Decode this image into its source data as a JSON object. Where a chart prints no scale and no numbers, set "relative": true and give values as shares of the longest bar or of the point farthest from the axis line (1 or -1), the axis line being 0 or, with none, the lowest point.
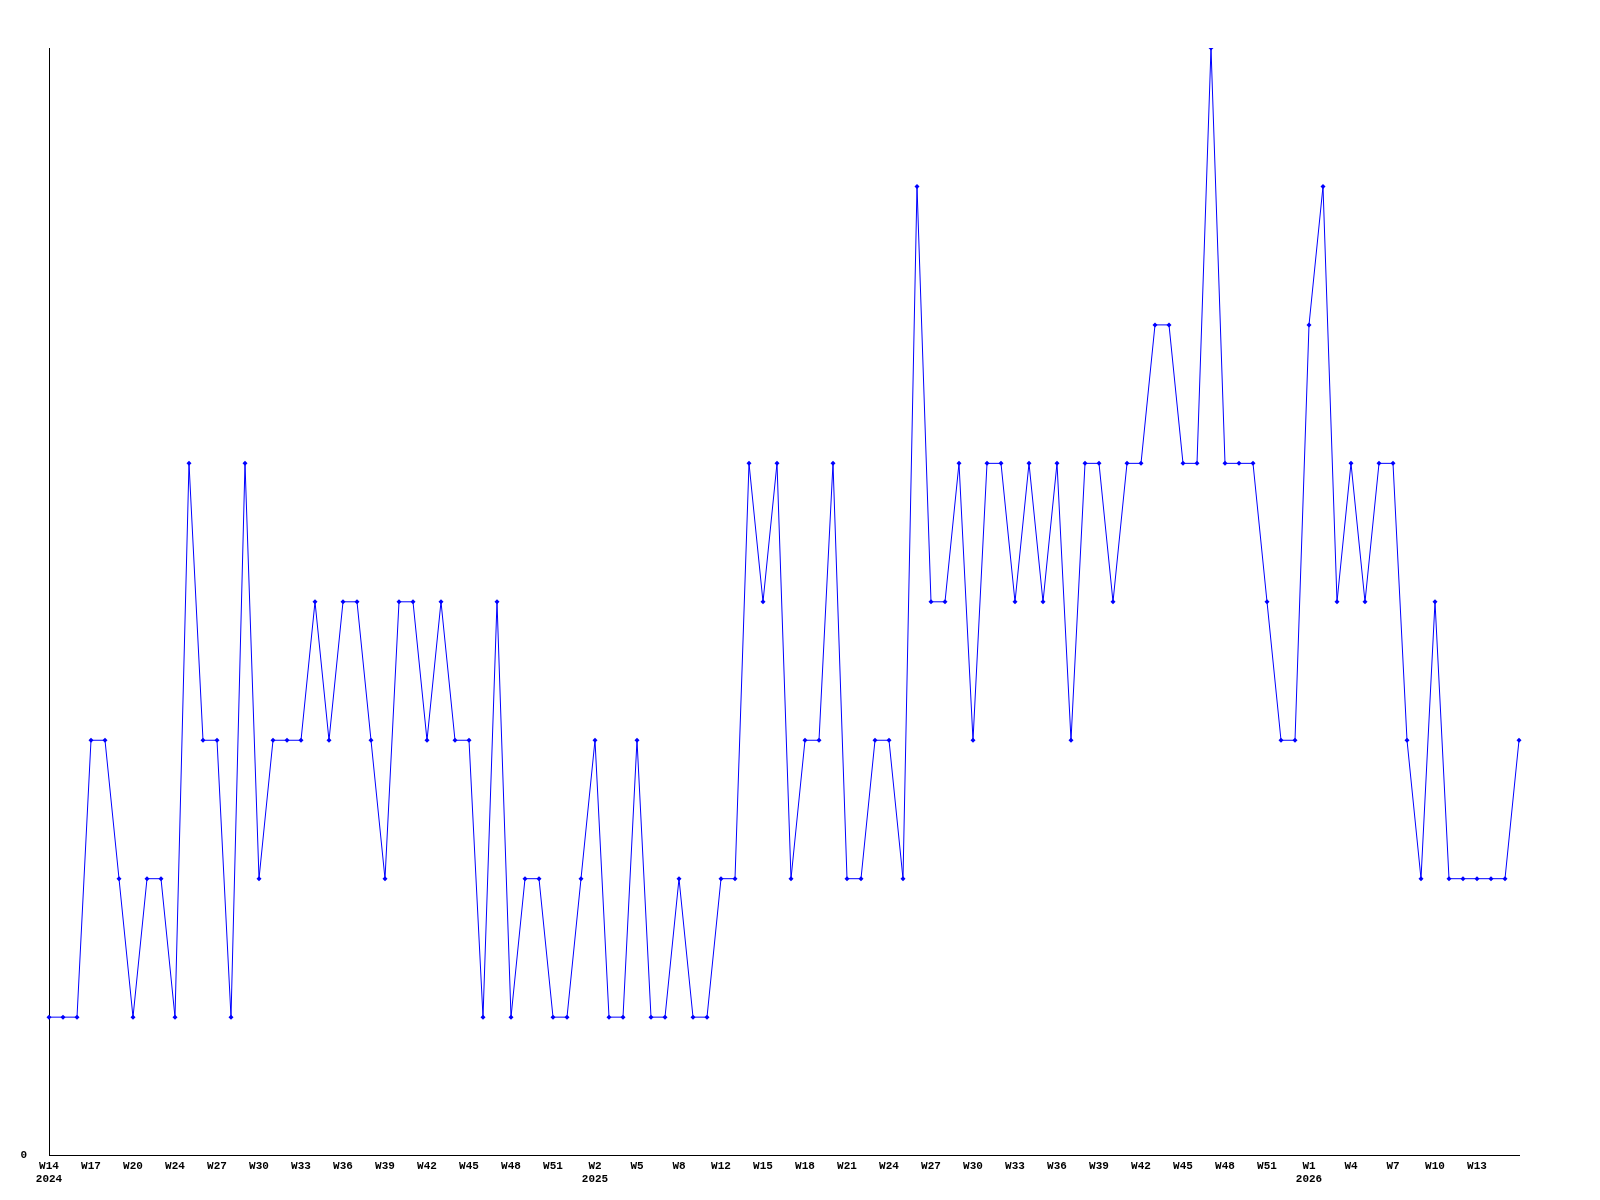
{
  "chart_data": {
    "type": "line",
    "relative": true,
    "color": "#0000ff",
    "marker": "diamond",
    "grid": false,
    "legend": false,
    "annotations": [
      "0"
    ],
    "categories": [
      "W14\n2024",
      null,
      null,
      "W17",
      null,
      null,
      "W20",
      null,
      null,
      "W24",
      null,
      null,
      "W27",
      null,
      null,
      "W30",
      null,
      null,
      "W33",
      null,
      null,
      "W36",
      null,
      null,
      "W39",
      null,
      null,
      "W42",
      null,
      null,
      "W45",
      null,
      null,
      "W48",
      null,
      null,
      "W51",
      null,
      null,
      "W2\n2025",
      null,
      null,
      "W5",
      null,
      null,
      "W8",
      null,
      null,
      "W12",
      null,
      null,
      "W15",
      null,
      null,
      "W18",
      null,
      null,
      "W21",
      null,
      null,
      "W24",
      null,
      null,
      "W27",
      null,
      null,
      "W30",
      null,
      null,
      "W33",
      null,
      null,
      "W36",
      null,
      null,
      "W39",
      null,
      null,
      "W42",
      null,
      null,
      "W45",
      null,
      null,
      "W48",
      null,
      null,
      "W51",
      null,
      null,
      "W1\n2026",
      null,
      null,
      "W4",
      null,
      null,
      "W7",
      null,
      null,
      "W10",
      null,
      null,
      "W13",
      null,
      null,
      null
    ],
    "values": [
      0.125,
      0.125,
      0.125,
      0.375,
      0.375,
      0.25,
      0.125,
      0.25,
      0.25,
      0.125,
      0.625,
      0.375,
      0.375,
      0.125,
      0.625,
      0.25,
      0.375,
      0.375,
      0.375,
      0.5,
      0.375,
      0.5,
      0.5,
      0.375,
      0.25,
      0.5,
      0.5,
      0.375,
      0.5,
      0.375,
      0.375,
      0.125,
      0.5,
      0.125,
      0.25,
      0.25,
      0.125,
      0.125,
      0.25,
      0.375,
      0.125,
      0.125,
      0.375,
      0.125,
      0.125,
      0.25,
      0.125,
      0.125,
      0.25,
      0.25,
      0.625,
      0.5,
      0.625,
      0.25,
      0.375,
      0.375,
      0.625,
      0.25,
      0.25,
      0.375,
      0.375,
      0.25,
      0.875,
      0.5,
      0.5,
      0.625,
      0.375,
      0.625,
      0.625,
      0.5,
      0.625,
      0.5,
      0.625,
      0.375,
      0.625,
      0.625,
      0.5,
      0.625,
      0.625,
      0.75,
      0.75,
      0.625,
      0.625,
      1,
      0.625,
      0.625,
      0.625,
      0.5,
      0.375,
      0.375,
      0.75,
      0.875,
      0.5,
      0.625,
      0.5,
      0.625,
      0.625,
      0.375,
      0.25,
      0.5,
      0.25,
      0.25,
      0.25,
      0.25,
      0.25,
      0.375
    ]
  }
}
